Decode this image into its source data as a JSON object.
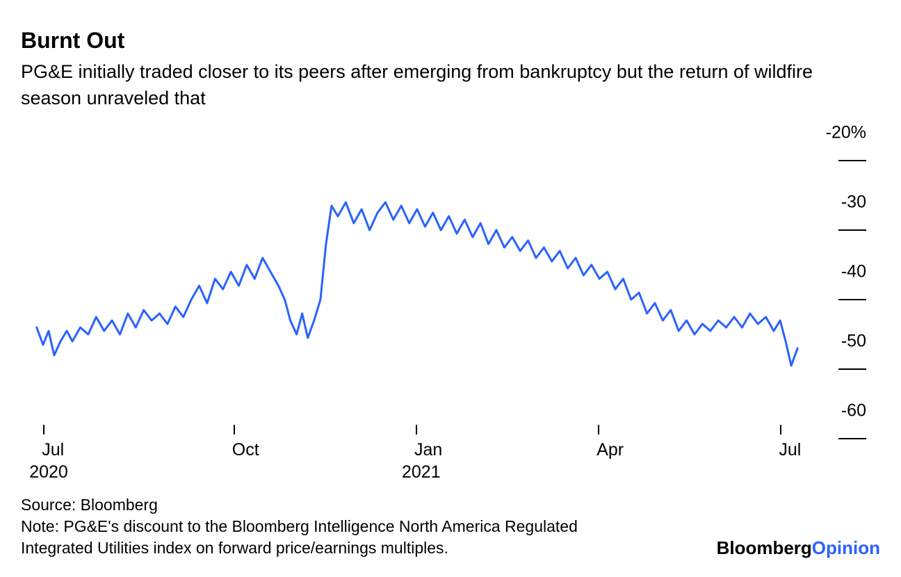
{
  "title": "Burnt Out",
  "subtitle": "PG&E initially traded closer to its peers after emerging from bankruptcy but the return of wildfire season unraveled that",
  "source": "Source: Bloomberg",
  "note": "Note: PG&E's discount to the Bloomberg Intelligence North America Regulated Integrated Utilities index on forward price/earnings multiples.",
  "brand_primary": "Bloomberg",
  "brand_secondary": "Opinion",
  "chart": {
    "type": "line",
    "line_color": "#2962ff",
    "line_width": 3,
    "background_color": "#ffffff",
    "y_axis": {
      "min": -60,
      "max": -20,
      "ticks": [
        {
          "value": -20,
          "label": "-20%"
        },
        {
          "value": -30,
          "label": "-30"
        },
        {
          "value": -40,
          "label": "-40"
        },
        {
          "value": -50,
          "label": "-50"
        },
        {
          "value": -60,
          "label": "-60"
        }
      ],
      "tick_label_fontsize": 25,
      "tick_color": "#000000"
    },
    "x_axis": {
      "ticks": [
        {
          "pos": 0.03,
          "month": "Jul",
          "year": "2020"
        },
        {
          "pos": 0.27,
          "month": "Oct",
          "year": ""
        },
        {
          "pos": 0.5,
          "month": "Jan",
          "year": "2021"
        },
        {
          "pos": 0.73,
          "month": "Apr",
          "year": ""
        },
        {
          "pos": 0.96,
          "month": "Jul",
          "year": ""
        }
      ],
      "tick_label_fontsize": 25,
      "tick_color": "#000000"
    },
    "series": [
      {
        "x": 0.02,
        "y": -48.0
      },
      {
        "x": 0.028,
        "y": -50.5
      },
      {
        "x": 0.035,
        "y": -48.5
      },
      {
        "x": 0.042,
        "y": -52.0
      },
      {
        "x": 0.05,
        "y": -50.0
      },
      {
        "x": 0.058,
        "y": -48.5
      },
      {
        "x": 0.065,
        "y": -50.0
      },
      {
        "x": 0.075,
        "y": -48.0
      },
      {
        "x": 0.085,
        "y": -49.0
      },
      {
        "x": 0.095,
        "y": -46.5
      },
      {
        "x": 0.105,
        "y": -48.5
      },
      {
        "x": 0.115,
        "y": -47.0
      },
      {
        "x": 0.125,
        "y": -49.0
      },
      {
        "x": 0.135,
        "y": -46.0
      },
      {
        "x": 0.145,
        "y": -48.0
      },
      {
        "x": 0.155,
        "y": -45.5
      },
      {
        "x": 0.165,
        "y": -47.0
      },
      {
        "x": 0.175,
        "y": -46.0
      },
      {
        "x": 0.185,
        "y": -47.5
      },
      {
        "x": 0.195,
        "y": -45.0
      },
      {
        "x": 0.205,
        "y": -46.5
      },
      {
        "x": 0.215,
        "y": -44.0
      },
      {
        "x": 0.225,
        "y": -42.0
      },
      {
        "x": 0.235,
        "y": -44.5
      },
      {
        "x": 0.245,
        "y": -41.0
      },
      {
        "x": 0.255,
        "y": -42.5
      },
      {
        "x": 0.265,
        "y": -40.0
      },
      {
        "x": 0.275,
        "y": -42.0
      },
      {
        "x": 0.285,
        "y": -39.0
      },
      {
        "x": 0.295,
        "y": -41.0
      },
      {
        "x": 0.305,
        "y": -38.0
      },
      {
        "x": 0.315,
        "y": -40.0
      },
      {
        "x": 0.325,
        "y": -42.0
      },
      {
        "x": 0.333,
        "y": -44.0
      },
      {
        "x": 0.34,
        "y": -47.0
      },
      {
        "x": 0.348,
        "y": -49.0
      },
      {
        "x": 0.355,
        "y": -46.0
      },
      {
        "x": 0.362,
        "y": -49.5
      },
      {
        "x": 0.37,
        "y": -47.0
      },
      {
        "x": 0.378,
        "y": -44.0
      },
      {
        "x": 0.385,
        "y": -36.0
      },
      {
        "x": 0.392,
        "y": -30.5
      },
      {
        "x": 0.4,
        "y": -32.0
      },
      {
        "x": 0.41,
        "y": -30.0
      },
      {
        "x": 0.42,
        "y": -33.0
      },
      {
        "x": 0.43,
        "y": -31.0
      },
      {
        "x": 0.44,
        "y": -34.0
      },
      {
        "x": 0.45,
        "y": -31.5
      },
      {
        "x": 0.46,
        "y": -30.0
      },
      {
        "x": 0.47,
        "y": -32.5
      },
      {
        "x": 0.48,
        "y": -30.5
      },
      {
        "x": 0.49,
        "y": -33.0
      },
      {
        "x": 0.5,
        "y": -31.0
      },
      {
        "x": 0.51,
        "y": -33.5
      },
      {
        "x": 0.52,
        "y": -31.5
      },
      {
        "x": 0.53,
        "y": -34.0
      },
      {
        "x": 0.54,
        "y": -32.0
      },
      {
        "x": 0.55,
        "y": -34.5
      },
      {
        "x": 0.56,
        "y": -32.5
      },
      {
        "x": 0.57,
        "y": -35.0
      },
      {
        "x": 0.58,
        "y": -33.0
      },
      {
        "x": 0.59,
        "y": -36.0
      },
      {
        "x": 0.6,
        "y": -34.0
      },
      {
        "x": 0.61,
        "y": -36.5
      },
      {
        "x": 0.62,
        "y": -35.0
      },
      {
        "x": 0.63,
        "y": -37.0
      },
      {
        "x": 0.64,
        "y": -35.5
      },
      {
        "x": 0.65,
        "y": -38.0
      },
      {
        "x": 0.66,
        "y": -36.5
      },
      {
        "x": 0.67,
        "y": -38.5
      },
      {
        "x": 0.68,
        "y": -37.0
      },
      {
        "x": 0.69,
        "y": -39.5
      },
      {
        "x": 0.7,
        "y": -38.0
      },
      {
        "x": 0.71,
        "y": -40.5
      },
      {
        "x": 0.72,
        "y": -39.0
      },
      {
        "x": 0.73,
        "y": -41.0
      },
      {
        "x": 0.74,
        "y": -40.0
      },
      {
        "x": 0.75,
        "y": -42.5
      },
      {
        "x": 0.76,
        "y": -41.0
      },
      {
        "x": 0.77,
        "y": -44.0
      },
      {
        "x": 0.78,
        "y": -43.0
      },
      {
        "x": 0.79,
        "y": -46.0
      },
      {
        "x": 0.8,
        "y": -44.5
      },
      {
        "x": 0.81,
        "y": -47.0
      },
      {
        "x": 0.82,
        "y": -45.5
      },
      {
        "x": 0.83,
        "y": -48.5
      },
      {
        "x": 0.84,
        "y": -47.0
      },
      {
        "x": 0.85,
        "y": -49.0
      },
      {
        "x": 0.86,
        "y": -47.5
      },
      {
        "x": 0.87,
        "y": -48.5
      },
      {
        "x": 0.88,
        "y": -47.0
      },
      {
        "x": 0.89,
        "y": -48.0
      },
      {
        "x": 0.9,
        "y": -46.5
      },
      {
        "x": 0.91,
        "y": -48.0
      },
      {
        "x": 0.92,
        "y": -46.0
      },
      {
        "x": 0.93,
        "y": -47.5
      },
      {
        "x": 0.94,
        "y": -46.5
      },
      {
        "x": 0.95,
        "y": -48.5
      },
      {
        "x": 0.958,
        "y": -47.0
      },
      {
        "x": 0.965,
        "y": -50.0
      },
      {
        "x": 0.972,
        "y": -53.5
      },
      {
        "x": 0.98,
        "y": -51.0
      }
    ]
  }
}
